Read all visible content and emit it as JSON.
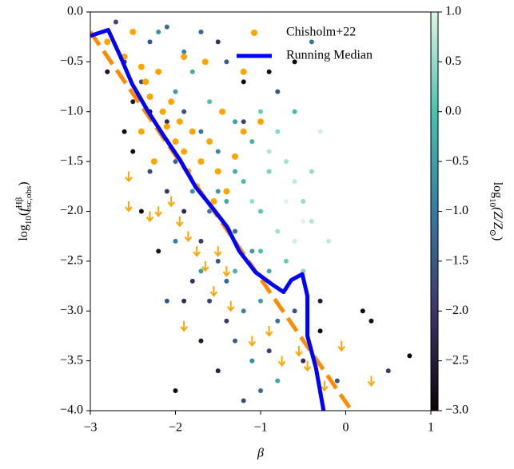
{
  "chart_data": {
    "type": "scatter",
    "xlabel": "β",
    "ylabel_parts": [
      "log",
      "10",
      "(",
      "f",
      "Hβ",
      "esc,obs",
      ")"
    ],
    "xlim": [
      -3,
      1
    ],
    "ylim": [
      -4,
      0
    ],
    "xticks": [
      {
        "value": -3,
        "label": "−3"
      },
      {
        "value": -2,
        "label": "−2"
      },
      {
        "value": -1,
        "label": "−1"
      },
      0,
      1
    ],
    "yticks": [
      {
        "value": 0,
        "label": "0.0"
      },
      {
        "value": -0.5,
        "label": "−0.5"
      },
      {
        "value": -1,
        "label": "−1.0"
      },
      {
        "value": -1.5,
        "label": "−1.5"
      },
      {
        "value": -2,
        "label": "−2.0"
      },
      {
        "value": -2.5,
        "label": "−2.5"
      },
      {
        "value": -3,
        "label": "−3.0"
      },
      {
        "value": -3.5,
        "label": "−3.5"
      },
      {
        "value": -4,
        "label": "−4.0"
      }
    ],
    "colorbar": {
      "label_parts": [
        "log",
        "10",
        "(Z/Z",
        "⊙",
        ")"
      ],
      "lim": [
        -3,
        1
      ],
      "ticks": [
        {
          "value": 1,
          "label": "1.0"
        },
        {
          "value": 0.5,
          "label": "0.5"
        },
        {
          "value": 0,
          "label": "0.0"
        },
        {
          "value": -0.5,
          "label": "−0.5"
        },
        {
          "value": -1,
          "label": "−1.0"
        },
        {
          "value": -1.5,
          "label": "−1.5"
        },
        {
          "value": -2,
          "label": "−2.0"
        },
        {
          "value": -2.5,
          "label": "−2.5"
        },
        {
          "value": -3,
          "label": "−3.0"
        }
      ],
      "colormap": [
        "#0b0405",
        "#3e356b",
        "#357ba3",
        "#49c1ad",
        "#def5e5"
      ]
    },
    "points": {
      "x": [
        -2.7,
        -2.5,
        -2.3,
        -2.1,
        -1.9,
        -2.6,
        -2.4,
        -2.2,
        -2.0,
        -1.8,
        -1.6,
        -1.4,
        -1.2,
        -0.9,
        -1.0,
        -0.8,
        -0.7,
        -0.6,
        -0.5,
        -0.9,
        -1.1,
        -1.3,
        -1.5,
        -1.7,
        -1.9,
        -2.1,
        -2.3,
        -2.5,
        -2.0,
        -1.8,
        -1.6,
        -1.4,
        -1.2,
        -1.0,
        -0.8,
        -0.6,
        -0.4,
        -0.7,
        -0.9,
        -1.1,
        -1.3,
        -1.5,
        -1.7,
        -1.9,
        -2.1,
        -2.3,
        -2.5,
        -1.8,
        -1.6,
        -1.4,
        -1.2,
        -1.0,
        -0.8,
        -0.6,
        -1.3,
        -1.1,
        -0.9,
        -1.5,
        -1.7,
        -1.0,
        -1.2,
        -0.8,
        -0.5,
        -0.3,
        0.2,
        0.3,
        0.75,
        0.5,
        -2.0,
        -1.9,
        -2.2,
        -2.4,
        -2.6,
        -2.8,
        -0.3,
        -0.4,
        -0.2,
        -0.5,
        -0.6,
        -0.4,
        -0.6,
        -0.8,
        -1.5,
        -1.7,
        -2.2,
        -1.1,
        -0.7,
        -0.9,
        -1.3,
        -1.5,
        -2.0,
        -1.7,
        -1.3,
        -0.3,
        -0.1,
        -1.4,
        -2.1,
        -1.0,
        -0.5,
        -1.2
      ],
      "y": [
        -0.1,
        -0.2,
        -0.3,
        -0.15,
        -0.4,
        -0.5,
        -0.7,
        -0.6,
        -0.8,
        -0.6,
        -0.9,
        -0.5,
        -0.7,
        -0.6,
        -1.0,
        -1.2,
        -1.5,
        -1.7,
        -1.9,
        -1.6,
        -1.3,
        -1.1,
        -1.4,
        -1.2,
        -1.0,
        -1.1,
        -1.0,
        -0.9,
        -1.5,
        -1.8,
        -2.0,
        -1.9,
        -1.7,
        -2.0,
        -2.2,
        -2.3,
        -2.1,
        -2.5,
        -2.6,
        -2.4,
        -2.2,
        -2.5,
        -2.3,
        -2.0,
        -1.8,
        -1.6,
        -1.4,
        -2.7,
        -2.9,
        -2.7,
        -3.0,
        -2.9,
        -3.1,
        -3.0,
        -3.3,
        -3.5,
        -3.4,
        -3.6,
        -3.3,
        -3.8,
        -3.9,
        -3.7,
        -3.5,
        -3.2,
        -3.0,
        -3.1,
        -3.45,
        -3.6,
        -3.8,
        -2.9,
        -2.4,
        -2.0,
        -1.2,
        -0.6,
        -1.2,
        -1.6,
        -2.3,
        -2.6,
        -0.5,
        -0.3,
        -1.0,
        -0.8,
        -0.3,
        -0.2,
        -0.2,
        -1.9,
        -1.9,
        -1.4,
        -1.6,
        -1.8,
        -2.3,
        -2.6,
        -2.6,
        -2.9,
        -3.7,
        -3.1,
        -2.9,
        -2.4,
        -2.1,
        -1.1
      ],
      "z": [
        -1.8,
        -2.5,
        -1.5,
        -1.2,
        -0.9,
        -2.0,
        -1.7,
        -1.0,
        -0.6,
        -0.3,
        0.0,
        -1.4,
        -2.9,
        -2.8,
        0.2,
        0.4,
        0.6,
        0.8,
        0.5,
        0.3,
        -0.2,
        -0.5,
        -0.8,
        -1.1,
        -1.6,
        -2.2,
        -2.9,
        -2.6,
        -1.3,
        -0.7,
        -1.0,
        -0.4,
        -0.1,
        0.1,
        0.6,
        0.9,
        0.7,
        0.2,
        -0.3,
        -0.6,
        -1.2,
        -1.5,
        -1.9,
        -2.3,
        -2.0,
        -1.7,
        -2.8,
        -2.1,
        -1.8,
        -1.3,
        -0.9,
        -0.5,
        -1.1,
        -1.6,
        -1.4,
        -0.8,
        -1.9,
        -2.4,
        -2.6,
        -1.2,
        -1.7,
        -0.4,
        -2.2,
        -2.9,
        -2.9,
        -2.8,
        -2.9,
        -2.0,
        -2.9,
        -2.2,
        -2.7,
        -2.9,
        -2.9,
        -2.7,
        0.9,
        0.5,
        0.8,
        0.4,
        -2.9,
        -1.1,
        -0.1,
        -1.5,
        -2.1,
        -1.3,
        -0.7,
        0.5,
        1.0,
        0.7,
        -0.3,
        -0.6,
        -1.0,
        -0.5,
        -0.2,
        -2.5,
        -1.6,
        -2.0,
        -1.5,
        0.0,
        1.0,
        -1.8
      ]
    },
    "series": [
      {
        "name": "Chisholm+22",
        "color": "#ffa500",
        "x": [
          -2.8,
          -2.6,
          -2.5,
          -2.4,
          -2.35,
          -2.3,
          -2.2,
          -2.15,
          -2.1,
          -2.05,
          -2.0,
          -1.95,
          -1.9,
          -1.85,
          -1.8,
          -1.75,
          -1.7,
          -1.6,
          -1.55,
          -1.5,
          -1.45,
          -1.4,
          -1.3,
          -1.2,
          -1.2,
          -2.25,
          -2.4,
          -1.65,
          -1.9,
          -1.0
        ],
        "y": [
          -0.3,
          -0.45,
          -0.2,
          -0.55,
          -0.7,
          -0.85,
          -0.6,
          -1.0,
          -1.15,
          -0.9,
          -1.3,
          -1.1,
          -1.4,
          -1.6,
          -1.2,
          -1.75,
          -1.5,
          -1.3,
          -1.9,
          -1.6,
          -1.0,
          -1.8,
          -1.45,
          -0.6,
          -1.2,
          -1.5,
          -1.2,
          -0.5,
          -0.45,
          -1.1
        ],
        "limits": {
          "x": [
            -2.55,
            -2.55,
            -2.3,
            -2.2,
            -2.05,
            -1.95,
            -1.85,
            -1.75,
            -1.65,
            -1.5,
            -1.4,
            -1.55,
            -1.35,
            -1.1,
            -0.9,
            -0.75,
            -0.55,
            -0.45,
            -0.05,
            0.3,
            -1.9,
            -0.25
          ],
          "y": [
            -1.6,
            -1.9,
            -2.0,
            -1.95,
            -1.85,
            -2.05,
            -2.2,
            -2.35,
            -2.5,
            -2.35,
            -2.55,
            -2.75,
            -2.9,
            -3.25,
            -3.15,
            -3.45,
            -3.35,
            -3.5,
            -3.3,
            -3.65,
            -3.1,
            -3.7
          ]
        }
      },
      {
        "name": "Running Median",
        "color": "#0000ff",
        "x": [
          -3,
          -2.79,
          -2.65,
          -2.51,
          -2.32,
          -2.14,
          -1.95,
          -1.76,
          -1.57,
          -1.39,
          -1.25,
          -1.06,
          -0.87,
          -0.73,
          -0.64,
          -0.51,
          -0.45,
          -0.45,
          -0.35,
          -0.26
        ],
        "y": [
          -0.24,
          -0.18,
          -0.44,
          -0.72,
          -1.0,
          -1.24,
          -1.48,
          -1.76,
          -1.96,
          -2.16,
          -2.4,
          -2.61,
          -2.73,
          -2.81,
          -2.69,
          -2.63,
          -2.85,
          -3.25,
          -3.57,
          -4.0
        ]
      }
    ],
    "fit": {
      "color": "#ff8c00",
      "x": [
        -3,
        0.07
      ],
      "y": [
        -0.2,
        -4
      ]
    },
    "legend": "upper right"
  }
}
